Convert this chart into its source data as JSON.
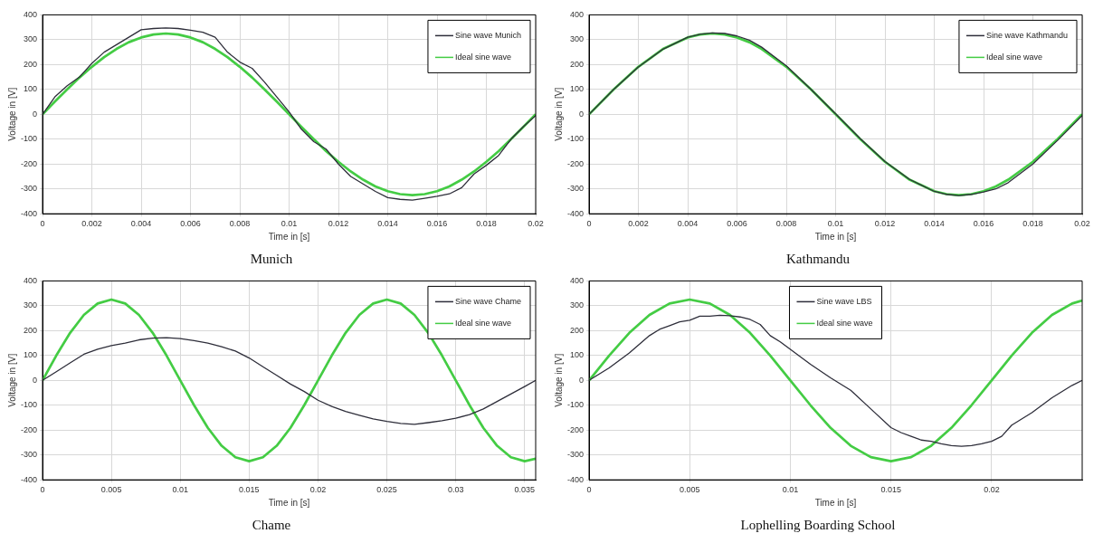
{
  "chart_data": [
    {
      "type": "line",
      "title": "Munich",
      "xlabel": "Time in [s]",
      "ylabel": "Voltage in [V]",
      "xlim": [
        0,
        0.02
      ],
      "ylim": [
        -400,
        400
      ],
      "xticks": [
        0,
        0.002,
        0.004,
        0.006,
        0.008,
        0.01,
        0.012,
        0.014,
        0.016,
        0.018,
        0.02
      ],
      "yticks": [
        -400,
        -300,
        -200,
        -100,
        0,
        100,
        200,
        300,
        400
      ],
      "grid": true,
      "legend": "top right",
      "series": [
        {
          "name": "Sine wave Munich",
          "color": "#2e2e3a",
          "x": [
            0,
            0.0005,
            0.001,
            0.0015,
            0.002,
            0.0025,
            0.003,
            0.0035,
            0.004,
            0.0045,
            0.005,
            0.0055,
            0.006,
            0.0065,
            0.007,
            0.0075,
            0.008,
            0.0085,
            0.009,
            0.0095,
            0.01,
            0.0105,
            0.011,
            0.0115,
            0.012,
            0.0125,
            0.013,
            0.0135,
            0.014,
            0.0145,
            0.015,
            0.0155,
            0.016,
            0.0165,
            0.017,
            0.0175,
            0.018,
            0.0185,
            0.019,
            0.0195,
            0.02
          ],
          "values": [
            0,
            70,
            115,
            150,
            205,
            250,
            280,
            310,
            340,
            345,
            347,
            345,
            338,
            330,
            310,
            250,
            210,
            185,
            130,
            70,
            10,
            -60,
            -110,
            -140,
            -200,
            -250,
            -280,
            -310,
            -335,
            -342,
            -345,
            -338,
            -330,
            -320,
            -295,
            -240,
            -205,
            -165,
            -100,
            -50,
            -5
          ]
        },
        {
          "name": "Ideal sine wave",
          "color": "#44cc44",
          "x": [
            0,
            0.0005,
            0.001,
            0.0015,
            0.002,
            0.0025,
            0.003,
            0.0035,
            0.004,
            0.0045,
            0.005,
            0.0055,
            0.006,
            0.0065,
            0.007,
            0.0075,
            0.008,
            0.0085,
            0.009,
            0.0095,
            0.01,
            0.0105,
            0.011,
            0.0115,
            0.012,
            0.0125,
            0.013,
            0.0135,
            0.014,
            0.0145,
            0.015,
            0.0155,
            0.016,
            0.0165,
            0.017,
            0.0175,
            0.018,
            0.0185,
            0.019,
            0.0195,
            0.02
          ],
          "values": [
            0,
            51,
            100,
            148,
            191,
            230,
            263,
            290,
            309,
            321,
            325,
            321,
            309,
            290,
            263,
            230,
            191,
            148,
            100,
            51,
            0,
            -51,
            -100,
            -148,
            -191,
            -230,
            -263,
            -290,
            -309,
            -321,
            -325,
            -321,
            -309,
            -290,
            -263,
            -230,
            -191,
            -148,
            -100,
            -51,
            0
          ]
        }
      ]
    },
    {
      "type": "line",
      "title": "Kathmandu",
      "xlabel": "Time in [s]",
      "ylabel": "Voltage in [V]",
      "xlim": [
        0,
        0.02
      ],
      "ylim": [
        -400,
        400
      ],
      "xticks": [
        0,
        0.002,
        0.004,
        0.006,
        0.008,
        0.01,
        0.012,
        0.014,
        0.016,
        0.018,
        0.02
      ],
      "yticks": [
        -400,
        -300,
        -200,
        -100,
        0,
        100,
        200,
        300,
        400
      ],
      "grid": true,
      "legend": "top right",
      "series": [
        {
          "name": "Sine wave Kathmandu",
          "color": "#2e2e3a",
          "x": [
            0,
            0.001,
            0.002,
            0.003,
            0.004,
            0.0045,
            0.005,
            0.0055,
            0.006,
            0.0065,
            0.007,
            0.008,
            0.009,
            0.01,
            0.011,
            0.012,
            0.013,
            0.014,
            0.0145,
            0.015,
            0.0155,
            0.016,
            0.0165,
            0.017,
            0.018,
            0.019,
            0.02
          ],
          "values": [
            0,
            100,
            190,
            262,
            310,
            322,
            327,
            325,
            315,
            298,
            270,
            195,
            100,
            2,
            -98,
            -190,
            -262,
            -310,
            -322,
            -327,
            -322,
            -312,
            -300,
            -275,
            -200,
            -105,
            -5
          ]
        },
        {
          "name": "Ideal sine wave",
          "color": "#44cc44",
          "x": [
            0,
            0.001,
            0.002,
            0.003,
            0.004,
            0.0045,
            0.005,
            0.0055,
            0.006,
            0.0065,
            0.007,
            0.008,
            0.009,
            0.01,
            0.011,
            0.012,
            0.013,
            0.014,
            0.0145,
            0.015,
            0.0155,
            0.016,
            0.0165,
            0.017,
            0.018,
            0.019,
            0.02
          ],
          "values": [
            0,
            100,
            191,
            263,
            309,
            321,
            325,
            321,
            309,
            290,
            263,
            191,
            100,
            0,
            -100,
            -191,
            -263,
            -309,
            -321,
            -325,
            -321,
            -309,
            -290,
            -263,
            -191,
            -100,
            0
          ]
        }
      ]
    },
    {
      "type": "line",
      "title": "Chame",
      "xlabel": "Time in [s]",
      "ylabel": "Voltage in [V]",
      "xlim": [
        0,
        0.0358
      ],
      "ylim": [
        -400,
        400
      ],
      "xticks": [
        0,
        0.005,
        0.01,
        0.015,
        0.02,
        0.025,
        0.03,
        0.035
      ],
      "yticks": [
        -400,
        -300,
        -200,
        -100,
        0,
        100,
        200,
        300,
        400
      ],
      "grid": true,
      "legend": "top right",
      "series": [
        {
          "name": "Sine wave Chame",
          "color": "#2e2e3a",
          "x": [
            0,
            0.001,
            0.002,
            0.003,
            0.004,
            0.005,
            0.006,
            0.007,
            0.008,
            0.009,
            0.01,
            0.011,
            0.012,
            0.013,
            0.014,
            0.015,
            0.016,
            0.017,
            0.018,
            0.019,
            0.02,
            0.021,
            0.022,
            0.023,
            0.024,
            0.025,
            0.026,
            0.027,
            0.028,
            0.029,
            0.03,
            0.031,
            0.032,
            0.033,
            0.034,
            0.035,
            0.0358
          ],
          "values": [
            0,
            35,
            70,
            105,
            125,
            140,
            150,
            163,
            170,
            172,
            168,
            160,
            150,
            135,
            118,
            90,
            55,
            20,
            -15,
            -45,
            -80,
            -105,
            -125,
            -140,
            -155,
            -165,
            -173,
            -177,
            -170,
            -162,
            -152,
            -138,
            -115,
            -85,
            -55,
            -25,
            0
          ]
        },
        {
          "name": "Ideal sine wave",
          "color": "#44cc44",
          "x": [
            0,
            0.001,
            0.002,
            0.003,
            0.004,
            0.005,
            0.006,
            0.007,
            0.008,
            0.009,
            0.01,
            0.011,
            0.012,
            0.013,
            0.014,
            0.015,
            0.016,
            0.017,
            0.018,
            0.019,
            0.02,
            0.021,
            0.022,
            0.023,
            0.024,
            0.025,
            0.026,
            0.027,
            0.028,
            0.029,
            0.03,
            0.031,
            0.032,
            0.033,
            0.034,
            0.035,
            0.0358
          ],
          "values": [
            0,
            100,
            191,
            263,
            309,
            325,
            309,
            263,
            191,
            100,
            0,
            -100,
            -191,
            -263,
            -309,
            -325,
            -309,
            -263,
            -191,
            -100,
            0,
            100,
            191,
            263,
            309,
            325,
            309,
            263,
            191,
            100,
            0,
            -100,
            -191,
            -263,
            -309,
            -325,
            -315
          ]
        }
      ]
    },
    {
      "type": "line",
      "title": "Lophelling Boarding School",
      "xlabel": "Time in [s]",
      "ylabel": "Voltage in [V]",
      "xlim": [
        0,
        0.0245
      ],
      "ylim": [
        -400,
        400
      ],
      "xticks": [
        0,
        0.005,
        0.01,
        0.015,
        0.02
      ],
      "yticks": [
        -400,
        -300,
        -200,
        -100,
        0,
        100,
        200,
        300,
        400
      ],
      "grid": true,
      "legend": "top",
      "series": [
        {
          "name": "Sine wave LBS",
          "color": "#2e2e3a",
          "x": [
            0,
            0.001,
            0.002,
            0.003,
            0.0035,
            0.004,
            0.0045,
            0.005,
            0.0055,
            0.006,
            0.0065,
            0.007,
            0.0075,
            0.008,
            0.0085,
            0.009,
            0.0095,
            0.01,
            0.011,
            0.012,
            0.013,
            0.014,
            0.015,
            0.0155,
            0.016,
            0.0165,
            0.017,
            0.0175,
            0.018,
            0.0185,
            0.019,
            0.0195,
            0.02,
            0.0205,
            0.021,
            0.022,
            0.023,
            0.024,
            0.0245
          ],
          "values": [
            0,
            50,
            110,
            180,
            205,
            220,
            235,
            242,
            258,
            258,
            262,
            260,
            255,
            245,
            225,
            180,
            155,
            125,
            65,
            10,
            -40,
            -115,
            -190,
            -210,
            -225,
            -240,
            -245,
            -255,
            -262,
            -265,
            -262,
            -255,
            -245,
            -225,
            -180,
            -130,
            -70,
            -20,
            0
          ]
        },
        {
          "name": "Ideal sine wave",
          "color": "#44cc44",
          "x": [
            0,
            0.001,
            0.002,
            0.003,
            0.004,
            0.005,
            0.006,
            0.007,
            0.008,
            0.009,
            0.01,
            0.011,
            0.012,
            0.013,
            0.014,
            0.015,
            0.016,
            0.017,
            0.018,
            0.019,
            0.02,
            0.021,
            0.022,
            0.023,
            0.024,
            0.0245
          ],
          "values": [
            0,
            100,
            191,
            263,
            309,
            325,
            309,
            263,
            191,
            100,
            0,
            -100,
            -191,
            -263,
            -309,
            -325,
            -309,
            -263,
            -191,
            -100,
            0,
            100,
            191,
            263,
            309,
            321
          ]
        }
      ]
    }
  ]
}
